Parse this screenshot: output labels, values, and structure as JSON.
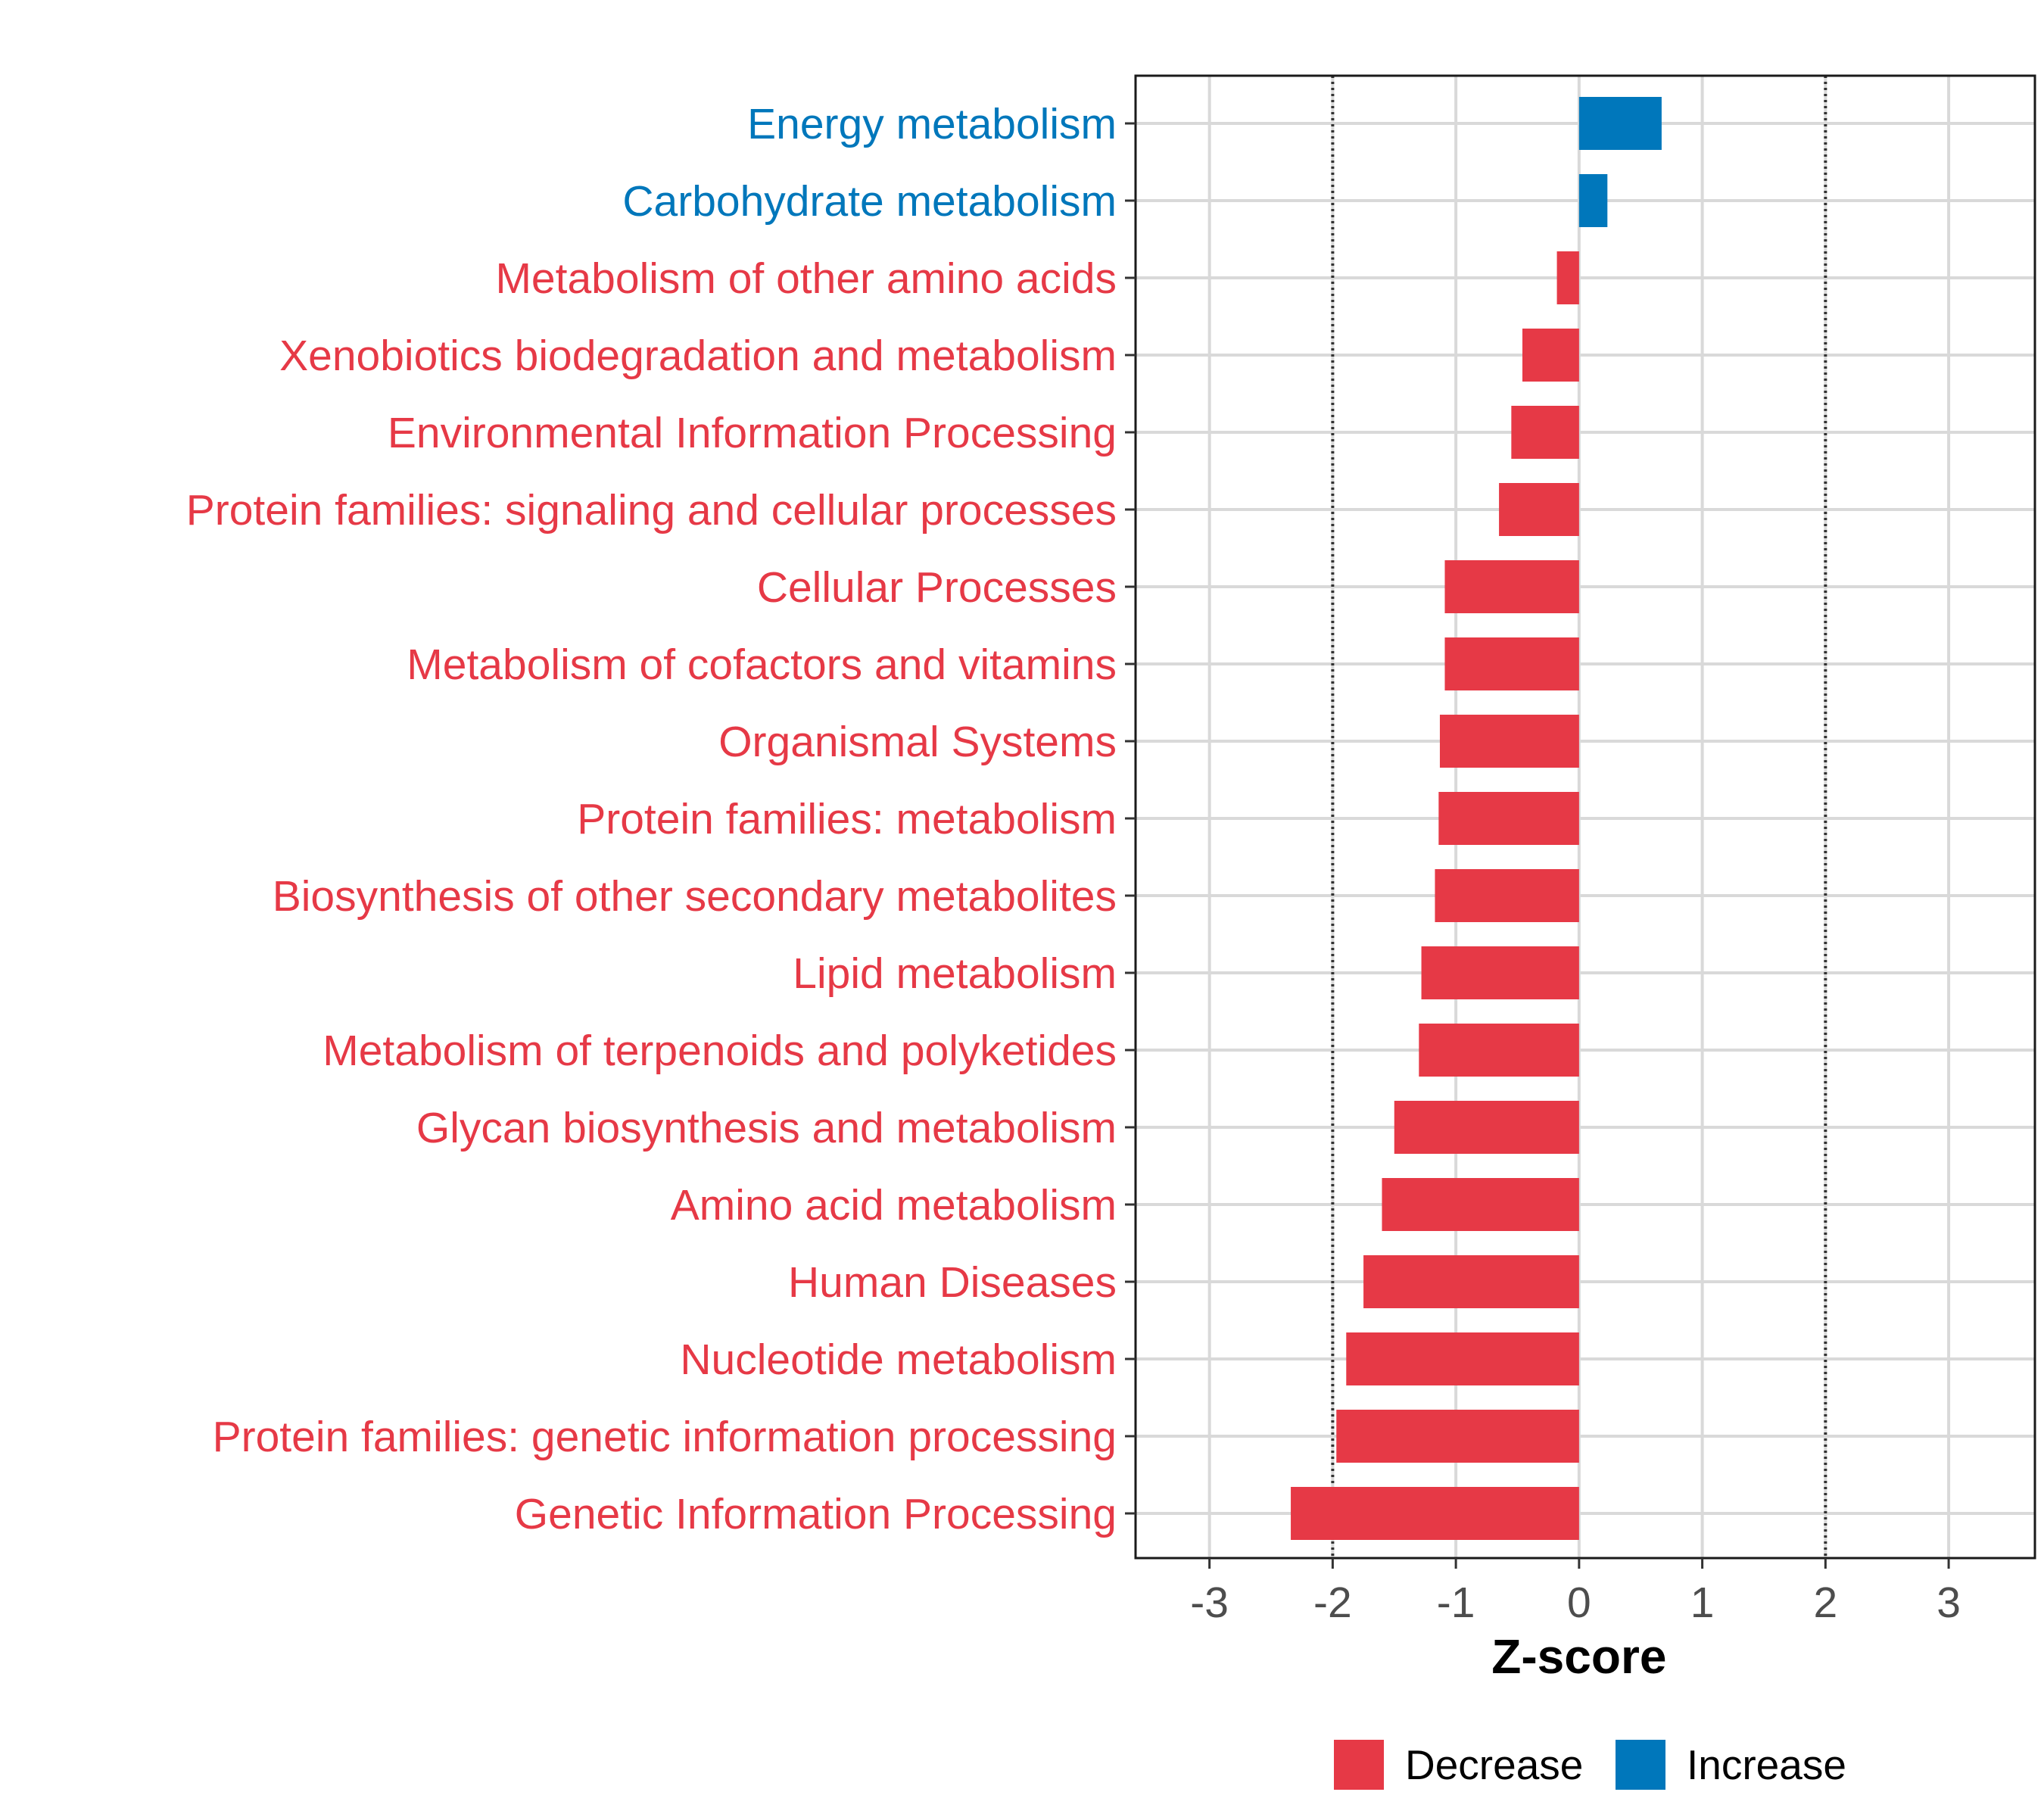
{
  "chart_data": {
    "type": "bar",
    "orientation": "horizontal",
    "title": "",
    "xlabel": "Z-score",
    "ylabel": "",
    "xlim": [
      -3.6,
      3.7
    ],
    "xticks": [
      -3,
      -2,
      -1,
      0,
      1,
      2,
      3
    ],
    "xtick_labels": [
      "-3",
      "-2",
      "-1",
      "0",
      "1",
      "2",
      "3"
    ],
    "threshold_lines": [
      -2,
      2
    ],
    "grid": true,
    "colors": {
      "Decrease": "#e63946",
      "Increase": "#0077bb"
    },
    "categories": [
      "Energy metabolism",
      "Carbohydrate metabolism",
      "Metabolism of other amino acids",
      "Xenobiotics biodegradation and metabolism",
      "Environmental Information Processing",
      "Protein families: signaling and cellular processes",
      "Cellular Processes",
      "Metabolism of cofactors and vitamins",
      "Organismal Systems",
      "Protein families: metabolism",
      "Biosynthesis of other secondary metabolites",
      "Lipid metabolism",
      "Metabolism of terpenoids and polyketides",
      "Glycan biosynthesis and metabolism",
      "Amino acid metabolism",
      "Human Diseases",
      "Nucleotide metabolism",
      "Protein families: genetic information processing",
      "Genetic Information Processing"
    ],
    "values": [
      0.67,
      0.23,
      -0.18,
      -0.46,
      -0.55,
      -0.65,
      -1.09,
      -1.09,
      -1.13,
      -1.14,
      -1.17,
      -1.28,
      -1.3,
      -1.5,
      -1.6,
      -1.75,
      -1.89,
      -1.97,
      -2.34
    ],
    "groups": [
      "Increase",
      "Increase",
      "Decrease",
      "Decrease",
      "Decrease",
      "Decrease",
      "Decrease",
      "Decrease",
      "Decrease",
      "Decrease",
      "Decrease",
      "Decrease",
      "Decrease",
      "Decrease",
      "Decrease",
      "Decrease",
      "Decrease",
      "Decrease",
      "Decrease"
    ],
    "legend": {
      "position": "bottom",
      "entries": [
        {
          "label": "Decrease",
          "color": "#e63946"
        },
        {
          "label": "Increase",
          "color": "#0077bb"
        }
      ]
    }
  }
}
